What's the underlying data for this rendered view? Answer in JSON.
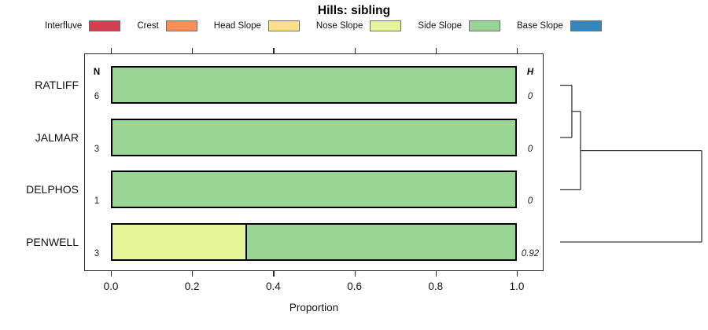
{
  "title": "Hills: sibling",
  "legend": {
    "items": [
      {
        "label": "Interfluve",
        "color": "#D53E4F"
      },
      {
        "label": "Crest",
        "color": "#FC8D59"
      },
      {
        "label": "Head Slope",
        "color": "#FEE08B"
      },
      {
        "label": "Nose Slope",
        "color": "#E6F598"
      },
      {
        "label": "Side Slope",
        "color": "#99D594"
      },
      {
        "label": "Base Slope",
        "color": "#3288BD"
      }
    ]
  },
  "chart_data": {
    "type": "bar",
    "orientation": "horizontal-stacked",
    "title": "Hills: sibling",
    "xlabel": "Proportion",
    "xlim": [
      0,
      1
    ],
    "x_ticks": [
      "0.0",
      "0.2",
      "0.4",
      "0.6",
      "0.8",
      "1.0"
    ],
    "x_tick_values": [
      0,
      0.2,
      0.4,
      0.6,
      0.8,
      1.0
    ],
    "columns": {
      "n_header": "N",
      "h_header": "H"
    },
    "categories": [
      "RATLIFF",
      "JALMAR",
      "DELPHOS",
      "PENWELL"
    ],
    "rows": [
      {
        "label": "RATLIFF",
        "n": "6",
        "h": "0",
        "segments": [
          {
            "class": "Side Slope",
            "value": 1.0
          }
        ]
      },
      {
        "label": "JALMAR",
        "n": "3",
        "h": "0",
        "segments": [
          {
            "class": "Side Slope",
            "value": 1.0
          }
        ]
      },
      {
        "label": "DELPHOS",
        "n": "1",
        "h": "0",
        "segments": [
          {
            "class": "Side Slope",
            "value": 1.0
          }
        ]
      },
      {
        "label": "PENWELL",
        "n": "3",
        "h": "0.92",
        "segments": [
          {
            "class": "Nose Slope",
            "value": 0.3333
          },
          {
            "class": "Side Slope",
            "value": 0.6667
          }
        ]
      }
    ],
    "grid": false,
    "legend_position": "top"
  },
  "dendrogram": {
    "leaf_order": [
      "RATLIFF",
      "JALMAR",
      "DELPHOS",
      "PENWELL"
    ],
    "merges": [
      {
        "join": [
          [
            "RATLIFF"
          ],
          [
            "JALMAR"
          ]
        ],
        "height": 0.083
      },
      {
        "join": [
          [
            "RATLIFF",
            "JALMAR"
          ],
          [
            "DELPHOS"
          ]
        ],
        "height": 0.144
      },
      {
        "join": [
          [
            "RATLIFF",
            "JALMAR",
            "DELPHOS"
          ],
          [
            "PENWELL"
          ]
        ],
        "height": 1.0
      }
    ]
  }
}
